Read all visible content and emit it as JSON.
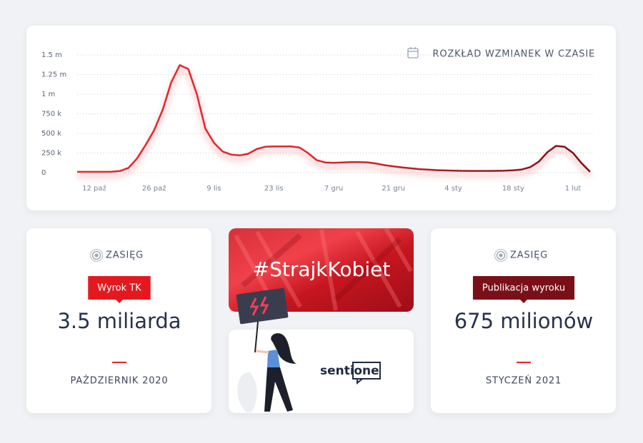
{
  "chart_data": {
    "type": "line",
    "title": "ROZKŁAD WZMIANEK W CZASIE",
    "categories": [
      null,
      null,
      "12 paź",
      null,
      null,
      null,
      null,
      null,
      null,
      "26 paź",
      null,
      null,
      null,
      null,
      null,
      null,
      "9 lis",
      null,
      null,
      null,
      null,
      null,
      null,
      "23 lis",
      null,
      null,
      null,
      null,
      null,
      null,
      "7 gru",
      null,
      null,
      null,
      null,
      null,
      null,
      "21 gru",
      null,
      null,
      null,
      null,
      null,
      null,
      "4 sty",
      null,
      null,
      null,
      null,
      null,
      null,
      "18 sty",
      null,
      null,
      null,
      null,
      null,
      null,
      "1 lut",
      null,
      null
    ],
    "series": [
      {
        "colors": [
          "#e3262c",
          "#7d0c14"
        ],
        "values": [
          10000,
          10000,
          10000,
          10000,
          12000,
          20000,
          60000,
          180000,
          350000,
          540000,
          800000,
          1150000,
          1370000,
          1320000,
          1000000,
          560000,
          380000,
          270000,
          230000,
          220000,
          240000,
          300000,
          330000,
          335000,
          335000,
          335000,
          320000,
          250000,
          160000,
          130000,
          125000,
          130000,
          135000,
          135000,
          130000,
          115000,
          95000,
          80000,
          65000,
          55000,
          45000,
          38000,
          32000,
          28000,
          25000,
          23000,
          22000,
          22000,
          22000,
          23000,
          25000,
          30000,
          40000,
          70000,
          140000,
          260000,
          340000,
          330000,
          250000,
          120000,
          10000
        ]
      }
    ],
    "ylim": [
      0,
      1500000
    ],
    "yticks": [
      0,
      {
        "value": 250000,
        "label": "250 k"
      },
      {
        "value": 500000,
        "label": "500 k"
      },
      {
        "value": 750000,
        "label": "750 k"
      },
      {
        "value": 1000000,
        "label": "1 m"
      },
      {
        "value": 1250000,
        "label": "1.25 m"
      },
      {
        "value": 1500000,
        "label": "1.5 m"
      }
    ],
    "grid": true
  },
  "cards": [
    {
      "label": "ZASIĘG",
      "badge": "Wyrok TK",
      "value": "3.5 miliarda",
      "date": "PAŹDZIERNIK 2020",
      "badge_color": "#e3191f"
    },
    {
      "label": "ZASIĘG",
      "badge": "Publikacja wyroku",
      "value": "675 milionów",
      "date": "STYCZEŃ 2021",
      "badge_color": "#7a1017"
    }
  ],
  "banner": {
    "hashtag": "#StrajkKobiet",
    "logo": [
      "senti",
      "one"
    ]
  }
}
